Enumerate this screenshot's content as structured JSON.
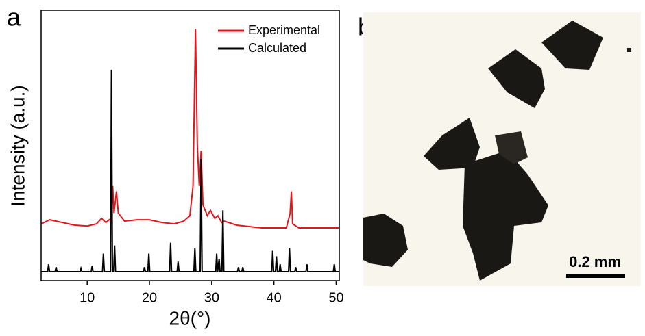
{
  "chart_data": {
    "type": "line",
    "panel_label": "a",
    "x_label": "2θ(°)",
    "y_label": "Intensity (a.u.)",
    "xlim": [
      2.6,
      50.5
    ],
    "xticks": [
      10,
      20,
      30,
      40,
      50
    ],
    "ylim": [
      0,
      100
    ],
    "legend": "upper right",
    "series": [
      {
        "name": "Experimental",
        "color": "#e8141b",
        "x": [
          2.6,
          4,
          6,
          8,
          10,
          11.5,
          12.3,
          13,
          13.8,
          14.1,
          14.3,
          14.7,
          15,
          16,
          18,
          20,
          22,
          24,
          25.5,
          26.5,
          27.0,
          27.4,
          27.7,
          28.0,
          28.3,
          28.6,
          29.3,
          29.8,
          30.5,
          31,
          31.6,
          32,
          34,
          36,
          38,
          40,
          42,
          42.6,
          42.8,
          43.0,
          44,
          46,
          48,
          50.5
        ],
        "values": [
          21,
          22.5,
          21.5,
          20.5,
          20.2,
          21,
          23,
          21.5,
          23,
          35,
          25,
          33,
          25,
          22,
          22.5,
          22.5,
          21.5,
          21,
          22,
          24,
          35,
          93,
          50,
          35,
          48,
          28,
          24,
          26,
          23,
          24,
          21.5,
          22,
          20.5,
          20,
          19.5,
          19.5,
          19.5,
          25,
          33,
          21,
          19.5,
          19.5,
          19.5,
          19.5
        ]
      },
      {
        "name": "Calculated",
        "color": "#000000",
        "x": [
          2.6,
          3.65,
          3.8,
          3.95,
          4.85,
          5.0,
          5.15,
          8.85,
          9.0,
          9.15,
          10.65,
          10.8,
          10.95,
          12.45,
          12.6,
          12.75,
          13.75,
          13.9,
          14.05,
          14.25,
          14.4,
          14.55,
          19.05,
          19.2,
          19.35,
          19.75,
          19.9,
          20.05,
          23.25,
          23.4,
          23.55,
          24.45,
          24.6,
          24.75,
          27.15,
          27.3,
          27.45,
          28.15,
          28.3,
          28.45,
          30.65,
          30.8,
          30.95,
          31.2,
          31.35,
          31.65,
          31.8,
          31.95,
          34.15,
          34.3,
          34.45,
          34.85,
          35.0,
          35.15,
          39.65,
          39.8,
          39.95,
          40.25,
          40.4,
          40.55,
          40.85,
          41.0,
          41.15,
          42.35,
          42.5,
          42.65,
          43.35,
          43.5,
          43.65,
          45.15,
          45.3,
          45.45,
          49.55,
          49.7,
          49.85,
          50.5
        ],
        "values": [
          3.3,
          3.3,
          6,
          3.3,
          3.3,
          5,
          3.3,
          3.3,
          4.5,
          3.3,
          3.3,
          5.5,
          3.3,
          3.3,
          10,
          3.3,
          3.3,
          78,
          3.3,
          3.3,
          13,
          3.3,
          3.3,
          5,
          3.3,
          3.3,
          10,
          3.3,
          3.3,
          14,
          3.3,
          3.3,
          7,
          3.3,
          3.3,
          12,
          3.3,
          3.3,
          45,
          3.3,
          3.3,
          10,
          3.3,
          8,
          3.3,
          3.3,
          26,
          3.3,
          3.3,
          5,
          3.3,
          3.3,
          5,
          3.3,
          3.3,
          11,
          3.3,
          3.3,
          9,
          3.3,
          3.3,
          6,
          3.3,
          3.3,
          12,
          3.3,
          3.3,
          5,
          3.3,
          3.3,
          6,
          3.3,
          3.3,
          6,
          3.3,
          3.3
        ]
      }
    ]
  },
  "micrograph": {
    "panel_label": "b",
    "scale_bar": "0.2 mm"
  }
}
